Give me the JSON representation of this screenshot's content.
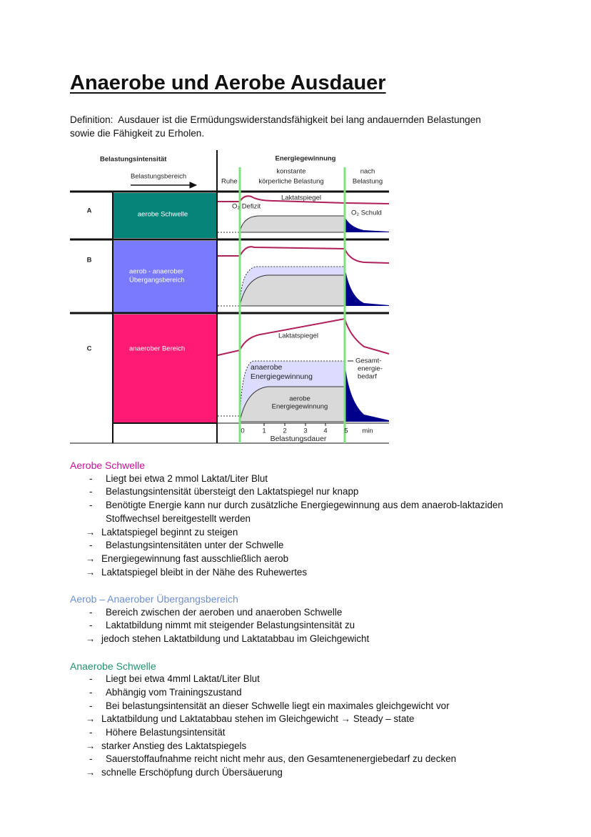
{
  "header": {
    "title": "Anaerobe und Aerobe Ausdauer"
  },
  "definition": "Definition:  Ausdauer ist die Ermüdungswiderstandsfähigkeit bei lang andauernden Belastungen sowie die Fähigkeit zu Erholen.",
  "diagram": {
    "col_left": "Belastungsintensität",
    "col_left_sub": "Belastungsbereich",
    "col_right": "Energiegewinnung",
    "phases": {
      "rest": "Ruhe",
      "load": [
        "konstante",
        "körperliche Belastung"
      ],
      "after": [
        "nach",
        "Belastung"
      ]
    },
    "rows": [
      {
        "letter": "A",
        "label": [
          "aerobe Schwelle"
        ]
      },
      {
        "letter": "B",
        "label": [
          "aerob - anaerober",
          "Übergangsbereich"
        ]
      },
      {
        "letter": "C",
        "label": [
          "anaerober Bereich"
        ]
      }
    ],
    "annotations": {
      "lactate_a": "Laktatspiegel",
      "o2_deficit": "O₂ Defizit",
      "o2_debt": "O₂ Schuld",
      "lactate_c": "Laktatspiegel",
      "anaerobic": [
        "anaerobe",
        "Energiegewinnung"
      ],
      "aerobic": [
        "aerobe",
        "Energiegewinnung"
      ],
      "total": [
        "Gesamt-",
        "energie-",
        "bedarf"
      ]
    },
    "axis": {
      "ticks": [
        "0",
        "1",
        "2",
        "3",
        "4",
        "5"
      ],
      "unit": "min",
      "label": "Belastungsdauer"
    }
  },
  "sections": [
    {
      "heading": "Aerobe Schwelle",
      "items": [
        {
          "marker": "-",
          "text": "Liegt bei etwa 2 mmol Laktat/Liter Blut"
        },
        {
          "marker": "-",
          "text": "Belastungsintensität übersteigt den Laktatspiegel nur knapp"
        },
        {
          "marker": "-",
          "text": "Benötigte Energie kann nur durch zusätzliche Energiegewinnung aus dem anaerob-laktaziden Stoffwechsel bereitgestellt werden"
        },
        {
          "marker": "→",
          "text": "Laktatspiegel beginnt zu steigen"
        },
        {
          "marker": "-",
          "text": "Belastungsintensitäten unter der Schwelle"
        },
        {
          "marker": "→",
          "text": "Energiegewinnung fast ausschließlich aerob"
        },
        {
          "marker": "→",
          "text": "Laktatspiegel bleibt in der Nähe des Ruhewertes"
        }
      ]
    },
    {
      "heading": "Aerob – Anaerober Übergangsbereich",
      "items": [
        {
          "marker": "-",
          "text": "Bereich zwischen der aeroben und anaeroben Schwelle"
        },
        {
          "marker": "-",
          "text": "Laktatbildung nimmt mit steigender Belastungsintensität zu"
        },
        {
          "marker": "→",
          "text": "jedoch stehen Laktatbildung und Laktatabbau im Gleichgewicht"
        }
      ]
    },
    {
      "heading": "Anaerobe Schwelle",
      "items": [
        {
          "marker": "-",
          "text": "Liegt bei etwa 4mml Laktat/Liter Blut"
        },
        {
          "marker": "-",
          "text": "Abhängig vom Trainingszustand"
        },
        {
          "marker": "-",
          "text": "Bei belastungsintensität an dieser Schwelle liegt ein maximales gleichgewicht vor"
        },
        {
          "marker": "→",
          "text": "Laktatbildung und Laktatabbau stehen im Gleichgewicht → Steady – state"
        },
        {
          "marker": "-",
          "text": "Höhere Belastungsintensität"
        },
        {
          "marker": "→",
          "text": "starker Anstieg des Laktatspiegels"
        },
        {
          "marker": "-",
          "text": "Sauerstoffaufnahme reicht nicht mehr aus, den Gesamtenenergiebedarf zu decken"
        },
        {
          "marker": "→",
          "text": "schnelle Erschöpfung durch Übersäuerung"
        }
      ]
    }
  ]
}
